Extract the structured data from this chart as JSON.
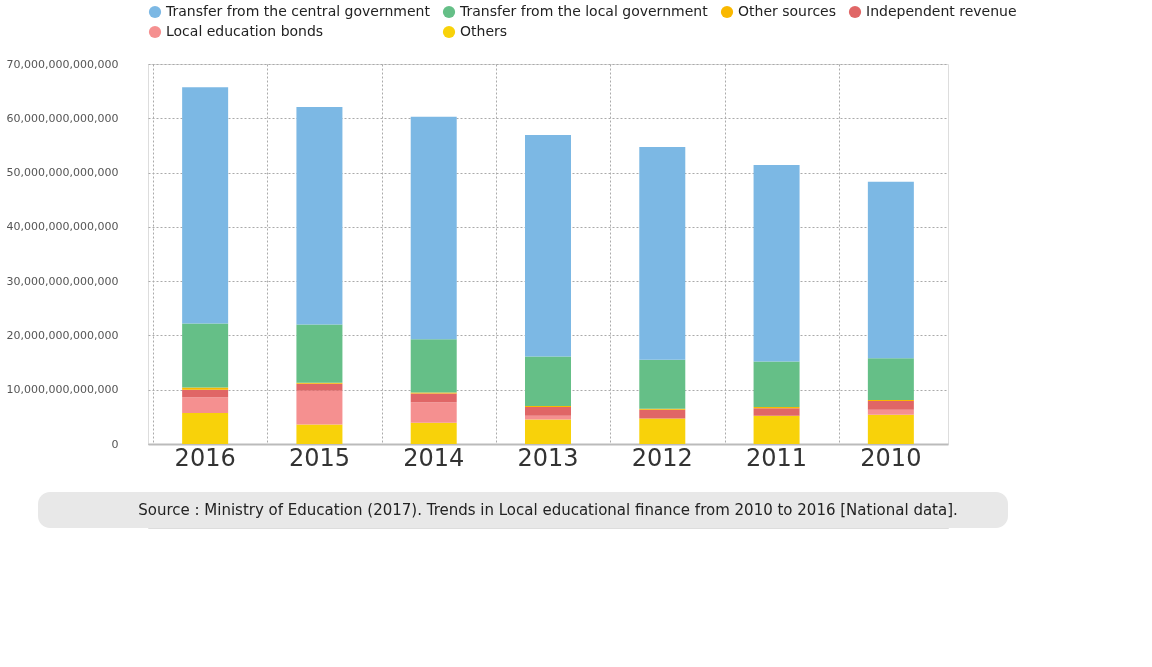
{
  "chart_data": {
    "type": "bar",
    "stacked": true,
    "categories": [
      "2016",
      "2015",
      "2014",
      "2013",
      "2012",
      "2011",
      "2010"
    ],
    "series": [
      {
        "name": "Others",
        "color": "#f8d20a",
        "values": [
          5700000000000,
          3600000000000,
          3900000000000,
          4500000000000,
          4700000000000,
          5200000000000,
          5400000000000
        ]
      },
      {
        "name": "Local education bonds",
        "color": "#f59090",
        "values": [
          2900000000000,
          6200000000000,
          3800000000000,
          700000000000,
          0,
          0,
          900000000000
        ]
      },
      {
        "name": "Independent revenue",
        "color": "#e06666",
        "values": [
          1400000000000,
          1300000000000,
          1600000000000,
          1600000000000,
          1600000000000,
          1400000000000,
          1600000000000
        ]
      },
      {
        "name": "Other sources",
        "color": "#f9b800",
        "values": [
          400000000000,
          200000000000,
          200000000000,
          200000000000,
          200000000000,
          200000000000,
          200000000000
        ]
      },
      {
        "name": "Transfer from the local government",
        "color": "#65bf87",
        "values": [
          11800000000000,
          10700000000000,
          9800000000000,
          9100000000000,
          9000000000000,
          8400000000000,
          7700000000000
        ]
      },
      {
        "name": "Transfer from the central government",
        "color": "#7cb8e4",
        "values": [
          43500000000000,
          40100000000000,
          41000000000000,
          40800000000000,
          39200000000000,
          36200000000000,
          32500000000000
        ]
      }
    ],
    "ylim": [
      0,
      70000000000000
    ],
    "yticks": [
      0,
      {
        "value": 10000000000000,
        "label": "10,000,000,000,000"
      },
      {
        "value": 20000000000000,
        "label": "20,000,000,000,000"
      },
      {
        "value": 30000000000000,
        "label": "30,000,000,000,000"
      },
      {
        "value": 40000000000000,
        "label": "40,000,000,000,000"
      },
      {
        "value": 50000000000000,
        "label": "50,000,000,000,000"
      },
      {
        "value": 60000000000000,
        "label": "60,000,000,000,000"
      },
      {
        "value": 70000000000000,
        "label": "70,000,000,000,000"
      }
    ],
    "grid": true,
    "legend": "top right",
    "annotations": [
      "Source : Ministry of Education (2017). Trends in Local educational finance from 2010 to 2016 [National data]."
    ]
  }
}
